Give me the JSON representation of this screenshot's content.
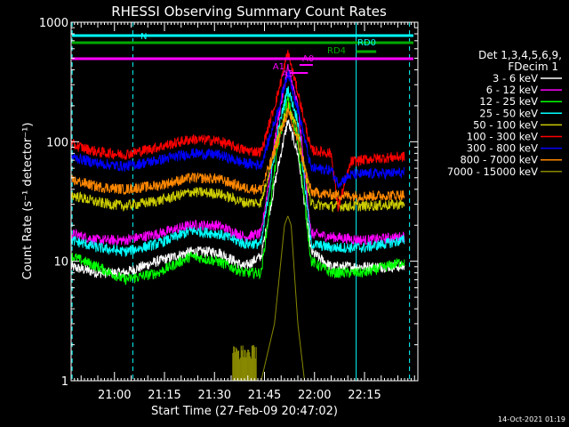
{
  "chart_data": {
    "type": "line",
    "title": "RHESSI Observing Summary Count Rates",
    "xlabel": "Start Time (27-Feb-09 20:47:02)",
    "ylabel": "Count Rate (s⁻¹ detector⁻¹)",
    "yscale": "log",
    "ylim": [
      1,
      1000
    ],
    "xlim_minutes": [
      0,
      104
    ],
    "x_ticks": [
      {
        "label": "21:00",
        "t": 13
      },
      {
        "label": "21:15",
        "t": 28
      },
      {
        "label": "21:30",
        "t": 43
      },
      {
        "label": "21:45",
        "t": 58
      },
      {
        "label": "22:00",
        "t": 73
      },
      {
        "label": "22:15",
        "t": 88
      }
    ],
    "y_ticks": [
      {
        "label": "1",
        "v": 1
      },
      {
        "label": "10",
        "v": 10
      },
      {
        "label": "100",
        "v": 100
      },
      {
        "label": "1000",
        "v": 1000
      }
    ],
    "legend": {
      "header": [
        "Det 1,3,4,5,6,9,",
        "FDecim 1"
      ],
      "placement": "right"
    },
    "series": [
      {
        "name": "3 - 6 keV",
        "color": "#ffffff",
        "points": [
          [
            0,
            9
          ],
          [
            8,
            8
          ],
          [
            16,
            8
          ],
          [
            26,
            10
          ],
          [
            36,
            12
          ],
          [
            44,
            12
          ],
          [
            52,
            9
          ],
          [
            57,
            11
          ],
          [
            62,
            60
          ],
          [
            65,
            150
          ],
          [
            68,
            80
          ],
          [
            72,
            12
          ],
          [
            78,
            9
          ],
          [
            88,
            9
          ],
          [
            100,
            9
          ]
        ]
      },
      {
        "name": "6 - 12 keV",
        "color": "#ff00ff",
        "points": [
          [
            0,
            17
          ],
          [
            8,
            15
          ],
          [
            16,
            15
          ],
          [
            26,
            17
          ],
          [
            36,
            20
          ],
          [
            44,
            20
          ],
          [
            52,
            16
          ],
          [
            57,
            17
          ],
          [
            62,
            150
          ],
          [
            65,
            420
          ],
          [
            68,
            200
          ],
          [
            72,
            17
          ],
          [
            78,
            16
          ],
          [
            88,
            15
          ],
          [
            100,
            16
          ]
        ]
      },
      {
        "name": "12 - 25 keV",
        "color": "#00ff00",
        "points": [
          [
            0,
            11
          ],
          [
            8,
            9
          ],
          [
            16,
            7
          ],
          [
            26,
            8
          ],
          [
            36,
            11
          ],
          [
            44,
            10
          ],
          [
            52,
            8
          ],
          [
            57,
            8
          ],
          [
            62,
            90
          ],
          [
            65,
            230
          ],
          [
            68,
            100
          ],
          [
            72,
            10
          ],
          [
            78,
            8
          ],
          [
            88,
            8
          ],
          [
            100,
            10
          ]
        ]
      },
      {
        "name": "25 - 50 keV",
        "color": "#00ffff",
        "points": [
          [
            0,
            15
          ],
          [
            8,
            13
          ],
          [
            16,
            12
          ],
          [
            26,
            14
          ],
          [
            36,
            18
          ],
          [
            44,
            17
          ],
          [
            52,
            14
          ],
          [
            57,
            14
          ],
          [
            62,
            120
          ],
          [
            65,
            280
          ],
          [
            68,
            150
          ],
          [
            72,
            14
          ],
          [
            78,
            13
          ],
          [
            88,
            13
          ],
          [
            100,
            15
          ]
        ]
      },
      {
        "name": "50 - 100 keV",
        "color": "#cccc00",
        "points": [
          [
            0,
            36
          ],
          [
            8,
            31
          ],
          [
            16,
            29
          ],
          [
            26,
            32
          ],
          [
            36,
            38
          ],
          [
            44,
            37
          ],
          [
            52,
            31
          ],
          [
            57,
            31
          ],
          [
            62,
            110
          ],
          [
            65,
            200
          ],
          [
            68,
            120
          ],
          [
            72,
            30
          ],
          [
            78,
            29
          ],
          [
            88,
            29
          ],
          [
            100,
            30
          ]
        ]
      },
      {
        "name": "100 - 300 keV",
        "color": "#ff0000",
        "points": [
          [
            0,
            95
          ],
          [
            8,
            82
          ],
          [
            16,
            78
          ],
          [
            26,
            90
          ],
          [
            36,
            105
          ],
          [
            44,
            102
          ],
          [
            52,
            85
          ],
          [
            57,
            82
          ],
          [
            62,
            250
          ],
          [
            65,
            560
          ],
          [
            68,
            260
          ],
          [
            72,
            85
          ],
          [
            78,
            80
          ],
          [
            80,
            28
          ],
          [
            84,
            68
          ],
          [
            90,
            72
          ],
          [
            100,
            75
          ]
        ]
      },
      {
        "name": "300 - 800 keV",
        "color": "#0000ff",
        "points": [
          [
            0,
            75
          ],
          [
            8,
            66
          ],
          [
            16,
            62
          ],
          [
            26,
            70
          ],
          [
            36,
            80
          ],
          [
            44,
            78
          ],
          [
            52,
            66
          ],
          [
            57,
            64
          ],
          [
            62,
            180
          ],
          [
            65,
            380
          ],
          [
            68,
            190
          ],
          [
            72,
            60
          ],
          [
            78,
            58
          ],
          [
            80,
            45
          ],
          [
            84,
            53
          ],
          [
            90,
            54
          ],
          [
            100,
            55
          ]
        ]
      },
      {
        "name": "800 - 7000 keV",
        "color": "#ff8800",
        "points": [
          [
            0,
            48
          ],
          [
            8,
            42
          ],
          [
            16,
            40
          ],
          [
            26,
            43
          ],
          [
            36,
            50
          ],
          [
            44,
            49
          ],
          [
            52,
            41
          ],
          [
            57,
            40
          ],
          [
            62,
            100
          ],
          [
            65,
            180
          ],
          [
            68,
            100
          ],
          [
            72,
            38
          ],
          [
            78,
            36
          ],
          [
            88,
            35
          ],
          [
            100,
            36
          ]
        ]
      },
      {
        "name": "7000 - 15000 keV",
        "color": "#888800",
        "points": [
          [
            48.5,
            1
          ],
          [
            57,
            1
          ],
          [
            61,
            3
          ],
          [
            64,
            20
          ],
          [
            65,
            24
          ],
          [
            66,
            20
          ],
          [
            68,
            3
          ],
          [
            70,
            1
          ]
        ]
      }
    ],
    "annotations": [
      {
        "text": "N",
        "color": "#00ffff"
      },
      {
        "text": "RD0",
        "color": "#00ffff"
      },
      {
        "text": "RD4",
        "color": "#00aa00"
      },
      {
        "text": "A1",
        "color": "#ff00ff"
      },
      {
        "text": "A0",
        "color": "#ff00ff"
      },
      {
        "text": "A3",
        "color": "#ff00ff"
      }
    ],
    "colors": {
      "background": "#000000",
      "axes": "#ffffff",
      "night": "#00ffff",
      "decimation": "#00aa00",
      "attenuator": "#ff00ff"
    }
  },
  "footer": {
    "timestamp": "14-Oct-2021 01:19"
  }
}
